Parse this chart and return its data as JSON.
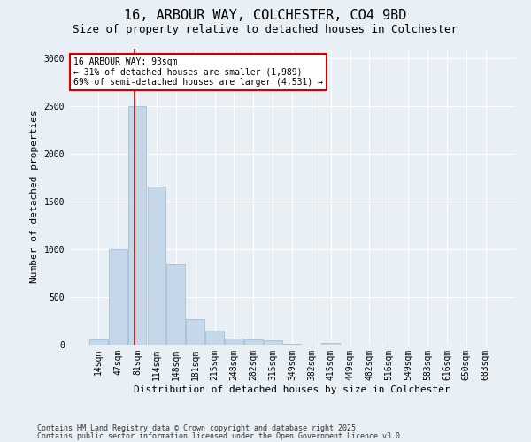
{
  "title1": "16, ARBOUR WAY, COLCHESTER, CO4 9BD",
  "title2": "Size of property relative to detached houses in Colchester",
  "xlabel": "Distribution of detached houses by size in Colchester",
  "ylabel": "Number of detached properties",
  "categories": [
    "14sqm",
    "47sqm",
    "81sqm",
    "114sqm",
    "148sqm",
    "181sqm",
    "215sqm",
    "248sqm",
    "282sqm",
    "315sqm",
    "349sqm",
    "382sqm",
    "415sqm",
    "449sqm",
    "482sqm",
    "516sqm",
    "549sqm",
    "583sqm",
    "616sqm",
    "650sqm",
    "683sqm"
  ],
  "values": [
    60,
    1000,
    2500,
    1660,
    840,
    268,
    148,
    68,
    52,
    42,
    8,
    0,
    18,
    4,
    4,
    0,
    0,
    0,
    0,
    0,
    0
  ],
  "bar_color": "#c5d8ea",
  "bar_edge_color": "#9ab8d0",
  "annotation_text": "16 ARBOUR WAY: 93sqm\n← 31% of detached houses are smaller (1,989)\n69% of semi-detached houses are larger (4,531) →",
  "annotation_box_facecolor": "#ffffff",
  "annotation_box_edgecolor": "#cc0000",
  "red_line_color": "#cc0000",
  "ylim": [
    0,
    3100
  ],
  "yticks": [
    0,
    500,
    1000,
    1500,
    2000,
    2500,
    3000
  ],
  "footer1": "Contains HM Land Registry data © Crown copyright and database right 2025.",
  "footer2": "Contains public sector information licensed under the Open Government Licence v3.0.",
  "fig_facecolor": "#e8eff5",
  "plot_facecolor": "#e8eff5",
  "grid_color": "#ffffff",
  "title1_fontsize": 11,
  "title2_fontsize": 9,
  "xlabel_fontsize": 8,
  "ylabel_fontsize": 8,
  "tick_fontsize": 7,
  "annotation_fontsize": 7,
  "footer_fontsize": 6
}
